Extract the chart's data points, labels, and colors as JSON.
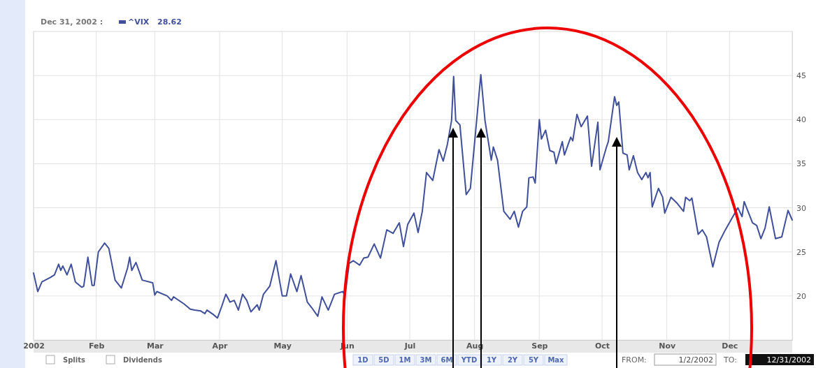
{
  "chart_data": {
    "type": "line",
    "legend": "top left",
    "grid": true,
    "marker": "none",
    "line_style": "solid",
    "xlim": [
      "2002-01-02",
      "2002-12-31"
    ],
    "xticks": [
      {
        "value": "2002-01-02",
        "label": "2002"
      },
      {
        "value": "2002-02-01",
        "label": "Feb"
      },
      {
        "value": "2002-03-01",
        "label": "Mar"
      },
      {
        "value": "2002-04-01",
        "label": "Apr"
      },
      {
        "value": "2002-05-01",
        "label": "May"
      },
      {
        "value": "2002-06-01",
        "label": "Jun"
      },
      {
        "value": "2002-07-01",
        "label": "Jul"
      },
      {
        "value": "2002-08-01",
        "label": "Aug"
      },
      {
        "value": "2002-09-01",
        "label": "Sep"
      },
      {
        "value": "2002-10-01",
        "label": "Oct"
      },
      {
        "value": "2002-11-01",
        "label": "Nov"
      },
      {
        "value": "2002-12-01",
        "label": "Dec"
      }
    ],
    "ylim": [
      15,
      50
    ],
    "yticks": [
      20,
      25,
      30,
      35,
      40,
      45
    ],
    "annotations": [
      "Dec 31, 2002 :",
      "28.62",
      "Splits",
      "Dividends",
      "1D",
      "5D",
      "1M",
      "3M",
      "6M",
      "YTD",
      "1Y",
      "2Y",
      "5Y",
      "Max",
      "FROM:",
      "1/2/2002",
      "TO:",
      "12/31/2002"
    ],
    "series": [
      {
        "name": "^VIX",
        "color": "#3f4f9a",
        "x": [
          "2002-01-02",
          "2002-01-04",
          "2002-01-06",
          "2002-01-10",
          "2002-01-12",
          "2002-01-14",
          "2002-01-15",
          "2002-01-16",
          "2002-01-18",
          "2002-01-20",
          "2002-01-22",
          "2002-01-25",
          "2002-01-26",
          "2002-01-28",
          "2002-01-30",
          "2002-01-31",
          "2002-02-02",
          "2002-02-05",
          "2002-02-07",
          "2002-02-10",
          "2002-02-13",
          "2002-02-16",
          "2002-02-17",
          "2002-02-18",
          "2002-02-20",
          "2002-02-23",
          "2002-02-28",
          "2002-03-01",
          "2002-03-02",
          "2002-03-07",
          "2002-03-09",
          "2002-03-10",
          "2002-03-15",
          "2002-03-18",
          "2002-03-20",
          "2002-03-23",
          "2002-03-25",
          "2002-03-26",
          "2002-03-29",
          "2002-03-31",
          "2002-04-02",
          "2002-04-04",
          "2002-04-06",
          "2002-04-08",
          "2002-04-10",
          "2002-04-12",
          "2002-04-14",
          "2002-04-16",
          "2002-04-19",
          "2002-04-20",
          "2002-04-22",
          "2002-04-25",
          "2002-04-28",
          "2002-05-01",
          "2002-05-03",
          "2002-05-05",
          "2002-05-08",
          "2002-05-10",
          "2002-05-13",
          "2002-05-15",
          "2002-05-18",
          "2002-05-20",
          "2002-05-23",
          "2002-05-26",
          "2002-05-30",
          "2002-05-31",
          "2002-06-02",
          "2002-06-04",
          "2002-06-07",
          "2002-06-09",
          "2002-06-11",
          "2002-06-14",
          "2002-06-17",
          "2002-06-20",
          "2002-06-23",
          "2002-06-26",
          "2002-06-28",
          "2002-06-30",
          "2002-07-03",
          "2002-07-05",
          "2002-07-07",
          "2002-07-09",
          "2002-07-12",
          "2002-07-15",
          "2002-07-17",
          "2002-07-19",
          "2002-07-21",
          "2002-07-22",
          "2002-07-23",
          "2002-07-25",
          "2002-07-28",
          "2002-07-30",
          "2002-08-02",
          "2002-08-04",
          "2002-08-06",
          "2002-08-09",
          "2002-08-10",
          "2002-08-12",
          "2002-08-15",
          "2002-08-18",
          "2002-08-20",
          "2002-08-22",
          "2002-08-24",
          "2002-08-26",
          "2002-08-27",
          "2002-08-29",
          "2002-08-30",
          "2002-09-01",
          "2002-09-02",
          "2002-09-04",
          "2002-09-06",
          "2002-09-08",
          "2002-09-09",
          "2002-09-12",
          "2002-09-13",
          "2002-09-16",
          "2002-09-17",
          "2002-09-19",
          "2002-09-21",
          "2002-09-24",
          "2002-09-26",
          "2002-09-29",
          "2002-09-30",
          "2002-10-03",
          "2002-10-04",
          "2002-10-07",
          "2002-10-08",
          "2002-10-09",
          "2002-10-11",
          "2002-10-13",
          "2002-10-14",
          "2002-10-16",
          "2002-10-18",
          "2002-10-20",
          "2002-10-22",
          "2002-10-23",
          "2002-10-24",
          "2002-10-25",
          "2002-10-28",
          "2002-10-30",
          "2002-10-31",
          "2002-11-03",
          "2002-11-06",
          "2002-11-09",
          "2002-11-10",
          "2002-11-12",
          "2002-11-13",
          "2002-11-16",
          "2002-11-18",
          "2002-11-20",
          "2002-11-23",
          "2002-11-26",
          "2002-11-29",
          "2002-12-05",
          "2002-12-07",
          "2002-12-08",
          "2002-12-12",
          "2002-12-14",
          "2002-12-16",
          "2002-12-18",
          "2002-12-20",
          "2002-12-23",
          "2002-12-26",
          "2002-12-29",
          "2002-12-31"
        ],
        "values": [
          22.6,
          20.5,
          21.6,
          22.1,
          22.4,
          23.6,
          22.9,
          23.4,
          22.4,
          23.6,
          21.6,
          21.0,
          21.1,
          24.4,
          21.2,
          21.2,
          25.0,
          26.0,
          25.4,
          21.8,
          20.9,
          23.2,
          24.4,
          22.9,
          23.8,
          21.8,
          21.5,
          20.1,
          20.5,
          20.0,
          19.5,
          19.9,
          19.1,
          18.5,
          18.4,
          18.3,
          18.0,
          18.4,
          17.9,
          17.5,
          18.8,
          20.2,
          19.3,
          19.5,
          18.4,
          20.2,
          19.5,
          18.2,
          19.0,
          18.4,
          20.2,
          21.1,
          24.0,
          20.0,
          20.0,
          22.5,
          20.5,
          22.3,
          19.3,
          18.7,
          17.7,
          19.9,
          18.4,
          20.2,
          20.5,
          20.0,
          23.7,
          24.0,
          23.5,
          24.3,
          24.4,
          25.9,
          24.3,
          27.5,
          27.1,
          28.3,
          25.6,
          28.1,
          29.4,
          27.2,
          29.6,
          34.0,
          33.1,
          36.6,
          35.3,
          37.2,
          39.9,
          44.9,
          39.9,
          39.4,
          31.5,
          32.2,
          39.9,
          45.1,
          39.9,
          35.4,
          36.9,
          35.4,
          29.6,
          28.7,
          29.6,
          27.8,
          29.6,
          30.1,
          33.4,
          33.5,
          32.8,
          40.0,
          37.8,
          38.8,
          36.5,
          36.3,
          35.0,
          37.5,
          36.0,
          38.0,
          37.6,
          40.6,
          39.2,
          40.4,
          34.7,
          39.7,
          34.3,
          36.8,
          37.5,
          42.6,
          41.6,
          42.0,
          36.2,
          36.0,
          34.3,
          35.9,
          34.0,
          33.2,
          34.0,
          33.4,
          34.0,
          30.1,
          32.2,
          31.2,
          29.4,
          31.2,
          30.5,
          29.6,
          31.2,
          30.8,
          31.1,
          27.0,
          27.5,
          26.7,
          23.3,
          26.1,
          27.5,
          30.0,
          29.0,
          30.7,
          28.3,
          28.0,
          26.5,
          27.7,
          30.1,
          26.5,
          26.7,
          29.7,
          28.62
        ]
      }
    ]
  }
}
